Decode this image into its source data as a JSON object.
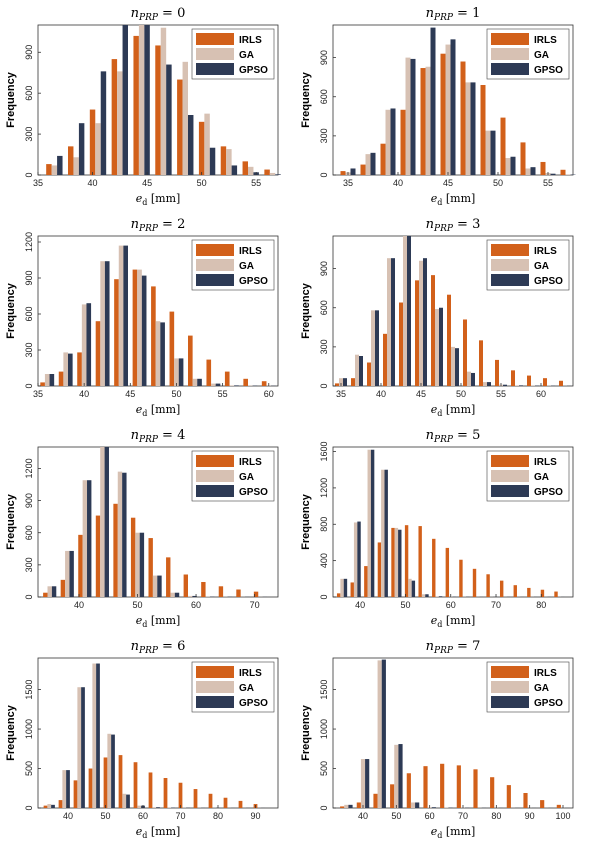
{
  "colors": {
    "IRLS": "#d2601a",
    "GA": "#d7c1b3",
    "GPSO": "#2d3a55"
  },
  "chart_data": [
    {
      "type": "bar",
      "title": "n_{PRP} = 0",
      "xlabel": "e_d [mm]",
      "ylabel": "Frequency",
      "xlim": [
        35,
        57
      ],
      "ylim": [
        0,
        1100
      ],
      "xticks": [
        35,
        40,
        45,
        50,
        55
      ],
      "yticks": [
        0,
        300,
        600,
        900
      ],
      "bin_centers": [
        36.5,
        38.5,
        40.5,
        42.5,
        44.5,
        46.5,
        48.5,
        50.5,
        52.5,
        54.5,
        56.5
      ],
      "legend": "top-right",
      "series": [
        {
          "name": "IRLS",
          "values": [
            80,
            210,
            480,
            850,
            1020,
            950,
            700,
            390,
            210,
            100,
            40
          ]
        },
        {
          "name": "GA",
          "values": [
            70,
            130,
            380,
            760,
            1100,
            1080,
            830,
            450,
            190,
            60,
            15
          ]
        },
        {
          "name": "GPSO",
          "values": [
            140,
            380,
            760,
            1100,
            1100,
            810,
            440,
            200,
            70,
            20,
            5
          ]
        }
      ]
    },
    {
      "type": "bar",
      "title": "n_{PRP} = 1",
      "xlabel": "e_d [mm]",
      "ylabel": "Frequency",
      "xlim": [
        33.5,
        57.5
      ],
      "ylim": [
        0,
        1150
      ],
      "xticks": [
        35,
        40,
        45,
        50,
        55
      ],
      "yticks": [
        0,
        300,
        600,
        900
      ],
      "bin_centers": [
        35,
        37,
        39,
        41,
        43,
        45,
        47,
        49,
        51,
        53,
        55,
        57
      ],
      "legend": "top-right",
      "series": [
        {
          "name": "IRLS",
          "values": [
            30,
            80,
            240,
            500,
            820,
            930,
            870,
            690,
            440,
            250,
            100,
            40
          ]
        },
        {
          "name": "GA",
          "values": [
            20,
            160,
            500,
            900,
            830,
            1000,
            710,
            340,
            130,
            50,
            15,
            5
          ]
        },
        {
          "name": "GPSO",
          "values": [
            50,
            170,
            510,
            890,
            1130,
            1040,
            710,
            340,
            140,
            60,
            10,
            3
          ]
        }
      ]
    },
    {
      "type": "bar",
      "title": "n_{PRP} = 2",
      "xlabel": "e_d [mm]",
      "ylabel": "Frequency",
      "xlim": [
        35,
        61
      ],
      "ylim": [
        0,
        1250
      ],
      "xticks": [
        35,
        40,
        45,
        50,
        55,
        60
      ],
      "yticks": [
        0,
        300,
        600,
        900,
        1200
      ],
      "bin_centers": [
        36,
        38,
        40,
        42,
        44,
        46,
        48,
        50,
        52,
        54,
        56,
        58,
        60
      ],
      "legend": "top-right",
      "series": [
        {
          "name": "IRLS",
          "values": [
            30,
            120,
            280,
            540,
            890,
            970,
            830,
            620,
            420,
            220,
            120,
            60,
            40
          ]
        },
        {
          "name": "GA",
          "values": [
            100,
            280,
            680,
            1040,
            1170,
            970,
            540,
            230,
            60,
            20,
            5,
            3,
            2
          ]
        },
        {
          "name": "GPSO",
          "values": [
            100,
            270,
            690,
            1040,
            1170,
            920,
            530,
            230,
            60,
            20,
            5,
            3,
            2
          ]
        }
      ]
    },
    {
      "type": "bar",
      "title": "n_{PRP} = 3",
      "xlabel": "e_d [mm]",
      "ylabel": "Frequency",
      "xlim": [
        34,
        64
      ],
      "ylim": [
        0,
        1150
      ],
      "xticks": [
        35,
        40,
        45,
        50,
        55,
        60
      ],
      "yticks": [
        0,
        300,
        600,
        900
      ],
      "bin_centers": [
        35,
        37,
        39,
        41,
        43,
        45,
        47,
        49,
        51,
        53,
        55,
        57,
        59,
        61,
        63
      ],
      "legend": "top-right",
      "series": [
        {
          "name": "IRLS",
          "values": [
            20,
            60,
            180,
            400,
            640,
            810,
            850,
            700,
            510,
            350,
            200,
            120,
            80,
            60,
            40
          ]
        },
        {
          "name": "GA",
          "values": [
            60,
            240,
            580,
            980,
            1160,
            960,
            590,
            300,
            110,
            30,
            10,
            5,
            3,
            2,
            1
          ]
        },
        {
          "name": "GPSO",
          "values": [
            60,
            230,
            580,
            980,
            1150,
            980,
            600,
            290,
            100,
            30,
            10,
            5,
            3,
            2,
            1
          ]
        }
      ]
    },
    {
      "type": "bar",
      "title": "n_{PRP} = 4",
      "xlabel": "e_d [mm]",
      "ylabel": "Frequency",
      "xlim": [
        33,
        74
      ],
      "ylim": [
        0,
        1400
      ],
      "xticks": [
        40,
        50,
        60,
        70
      ],
      "yticks": [
        0,
        300,
        600,
        900,
        1200
      ],
      "bin_centers": [
        35,
        38,
        41,
        44,
        47,
        50,
        53,
        56,
        59,
        62,
        65,
        68,
        71
      ],
      "legend": "top-right",
      "series": [
        {
          "name": "IRLS",
          "values": [
            40,
            160,
            580,
            760,
            870,
            740,
            550,
            370,
            210,
            140,
            100,
            70,
            50
          ]
        },
        {
          "name": "GA",
          "values": [
            100,
            430,
            1090,
            1400,
            1170,
            600,
            200,
            40,
            10,
            3,
            2,
            1,
            1
          ]
        },
        {
          "name": "GPSO",
          "values": [
            100,
            430,
            1090,
            1400,
            1160,
            600,
            200,
            40,
            10,
            3,
            2,
            1,
            1
          ]
        }
      ]
    },
    {
      "type": "bar",
      "title": "n_{PRP} = 5",
      "xlabel": "e_d [mm]",
      "ylabel": "Frequency",
      "xlim": [
        34,
        87
      ],
      "ylim": [
        0,
        1650
      ],
      "xticks": [
        40,
        50,
        60,
        70,
        80
      ],
      "yticks": [
        0,
        400,
        800,
        1200,
        1600
      ],
      "bin_centers": [
        36,
        39,
        42,
        45,
        48,
        51,
        54,
        57,
        60,
        63,
        66,
        69,
        72,
        75,
        78,
        81,
        84
      ],
      "legend": "top-right",
      "series": [
        {
          "name": "IRLS",
          "values": [
            40,
            160,
            340,
            600,
            760,
            790,
            780,
            640,
            540,
            410,
            310,
            250,
            180,
            130,
            100,
            80,
            60
          ]
        },
        {
          "name": "GA",
          "values": [
            200,
            820,
            1620,
            1400,
            760,
            200,
            30,
            8,
            3,
            2,
            1,
            1,
            1,
            1,
            1,
            1,
            1
          ]
        },
        {
          "name": "GPSO",
          "values": [
            200,
            830,
            1620,
            1400,
            740,
            180,
            30,
            8,
            3,
            2,
            1,
            1,
            1,
            1,
            1,
            1,
            1
          ]
        }
      ]
    },
    {
      "type": "bar",
      "title": "n_{PRP} = 6",
      "xlabel": "e_d [mm]",
      "ylabel": "Frequency",
      "xlim": [
        32,
        96
      ],
      "ylim": [
        0,
        1900
      ],
      "xticks": [
        40,
        50,
        60,
        70,
        80,
        90
      ],
      "yticks": [
        0,
        500,
        1000,
        1500
      ],
      "bin_centers": [
        35,
        39,
        43,
        47,
        51,
        55,
        59,
        63,
        67,
        71,
        75,
        79,
        83,
        87,
        91
      ],
      "legend": "top-right",
      "series": [
        {
          "name": "IRLS",
          "values": [
            30,
            100,
            350,
            500,
            640,
            670,
            580,
            450,
            380,
            320,
            240,
            180,
            130,
            90,
            50
          ]
        },
        {
          "name": "GA",
          "values": [
            50,
            480,
            1530,
            1830,
            940,
            180,
            30,
            10,
            5,
            3,
            2,
            2,
            1,
            1,
            1
          ]
        },
        {
          "name": "GPSO",
          "values": [
            40,
            480,
            1530,
            1830,
            930,
            170,
            30,
            10,
            5,
            3,
            2,
            2,
            1,
            1,
            1
          ]
        }
      ]
    },
    {
      "type": "bar",
      "title": "n_{PRP} = 7",
      "xlabel": "e_d [mm]",
      "ylabel": "Frequency",
      "xlim": [
        31,
        103
      ],
      "ylim": [
        0,
        1900
      ],
      "xticks": [
        40,
        50,
        60,
        70,
        80,
        90,
        100
      ],
      "yticks": [
        0,
        500,
        1000,
        1500
      ],
      "bin_centers": [
        35,
        40,
        45,
        50,
        55,
        60,
        65,
        70,
        75,
        80,
        85,
        90,
        95,
        100
      ],
      "legend": "top-right",
      "series": [
        {
          "name": "IRLS",
          "values": [
            20,
            70,
            180,
            300,
            440,
            530,
            560,
            540,
            490,
            390,
            290,
            190,
            100,
            40
          ]
        },
        {
          "name": "GA",
          "values": [
            40,
            620,
            1870,
            800,
            70,
            10,
            5,
            3,
            2,
            2,
            1,
            1,
            1,
            1
          ]
        },
        {
          "name": "GPSO",
          "values": [
            40,
            620,
            1880,
            810,
            70,
            10,
            5,
            3,
            2,
            2,
            1,
            1,
            1,
            1
          ]
        }
      ]
    }
  ]
}
